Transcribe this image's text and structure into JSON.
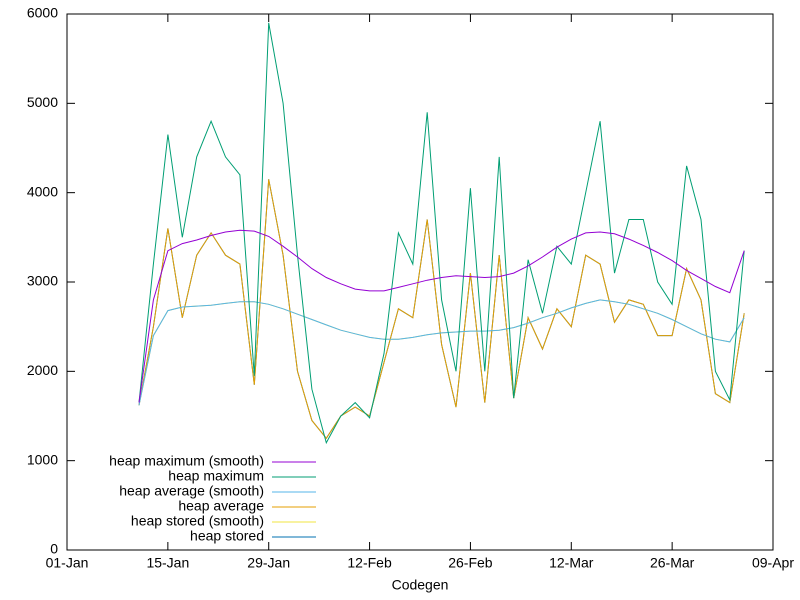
{
  "chart_data": {
    "type": "line",
    "x_label": "Codegen",
    "x": [
      "11-Jan",
      "13-Jan",
      "15-Jan",
      "17-Jan",
      "19-Jan",
      "21-Jan",
      "23-Jan",
      "25-Jan",
      "27-Jan",
      "29-Jan",
      "31-Jan",
      "02-Feb",
      "04-Feb",
      "06-Feb",
      "08-Feb",
      "10-Feb",
      "12-Feb",
      "14-Feb",
      "16-Feb",
      "18-Feb",
      "20-Feb",
      "22-Feb",
      "24-Feb",
      "26-Feb",
      "28-Feb",
      "02-Mar",
      "04-Mar",
      "06-Mar",
      "08-Mar",
      "10-Mar",
      "12-Mar",
      "14-Mar",
      "16-Mar",
      "18-Mar",
      "20-Mar",
      "22-Mar",
      "24-Mar",
      "26-Mar",
      "28-Mar",
      "30-Mar",
      "01-Apr",
      "03-Apr",
      "05-Apr"
    ],
    "series": [
      {
        "name": "heap maximum (smooth)",
        "color": "#9400d3",
        "values": [
          1650,
          2800,
          3350,
          3430,
          3470,
          3520,
          3560,
          3580,
          3570,
          3510,
          3400,
          3280,
          3150,
          3050,
          2980,
          2920,
          2900,
          2900,
          2940,
          2980,
          3020,
          3050,
          3070,
          3060,
          3050,
          3060,
          3100,
          3180,
          3280,
          3390,
          3480,
          3550,
          3560,
          3540,
          3480,
          3410,
          3330,
          3240,
          3130,
          3040,
          2950,
          2880,
          3350
        ]
      },
      {
        "name": "heap maximum",
        "color": "#009e73",
        "values": [
          1650,
          3200,
          4650,
          3500,
          4400,
          4800,
          4400,
          4200,
          1950,
          5900,
          5000,
          3300,
          1800,
          1200,
          1500,
          1650,
          1480,
          2200,
          3550,
          3200,
          4900,
          2800,
          2000,
          4050,
          2000,
          4400,
          1700,
          3250,
          2650,
          3400,
          3200,
          4000,
          4800,
          3100,
          3700,
          3700,
          3000,
          2750,
          4300,
          3700,
          2000,
          1680,
          3350
        ]
      },
      {
        "name": "heap average (smooth)",
        "color": "#56b4e9",
        "values": [
          1620,
          2400,
          2680,
          2720,
          2730,
          2740,
          2760,
          2780,
          2780,
          2750,
          2700,
          2640,
          2580,
          2520,
          2460,
          2420,
          2380,
          2360,
          2360,
          2380,
          2410,
          2430,
          2440,
          2450,
          2450,
          2460,
          2490,
          2540,
          2600,
          2650,
          2710,
          2760,
          2800,
          2780,
          2750,
          2700,
          2650,
          2580,
          2500,
          2420,
          2360,
          2330,
          2600
        ]
      },
      {
        "name": "heap average",
        "color": "#e69f00",
        "values": [
          1620,
          2500,
          3600,
          2600,
          3300,
          3550,
          3300,
          3200,
          1850,
          4150,
          3300,
          2000,
          1450,
          1250,
          1500,
          1600,
          1500,
          2100,
          2700,
          2600,
          3700,
          2300,
          1600,
          3100,
          1650,
          3300,
          1700,
          2600,
          2250,
          2700,
          2500,
          3300,
          3200,
          2550,
          2800,
          2750,
          2400,
          2400,
          3150,
          2800,
          1750,
          1650,
          2650
        ]
      },
      {
        "name": "heap stored (smooth)",
        "color": "#f0e442",
        "values": [
          1620,
          2400,
          2680,
          2720,
          2730,
          2740,
          2760,
          2780,
          2780,
          2750,
          2700,
          2640,
          2580,
          2520,
          2460,
          2420,
          2380,
          2360,
          2360,
          2380,
          2410,
          2430,
          2440,
          2450,
          2450,
          2460,
          2490,
          2540,
          2600,
          2650,
          2710,
          2760,
          2800,
          2780,
          2750,
          2700,
          2650,
          2580,
          2500,
          2420,
          2360,
          2330,
          2600
        ]
      },
      {
        "name": "heap stored",
        "color": "#0072b2",
        "values": [
          1620,
          2500,
          3600,
          2600,
          3300,
          3550,
          3300,
          3200,
          1850,
          4150,
          3300,
          2000,
          1450,
          1250,
          1500,
          1600,
          1500,
          2100,
          2700,
          2600,
          3700,
          2300,
          1600,
          3100,
          1650,
          3300,
          1700,
          2600,
          2250,
          2700,
          2500,
          3300,
          3200,
          2550,
          2800,
          2750,
          2400,
          2400,
          3150,
          2800,
          1750,
          1650,
          2650
        ]
      }
    ],
    "xlim": [
      "01-Jan",
      "09-Apr"
    ],
    "xticks": [
      "01-Jan",
      "15-Jan",
      "29-Jan",
      "12-Feb",
      "26-Feb",
      "12-Mar",
      "26-Mar",
      "09-Apr"
    ],
    "ylim": [
      0,
      6000
    ],
    "yticks": [
      0,
      1000,
      2000,
      3000,
      4000,
      5000,
      6000
    ],
    "legend": "bottom-left",
    "grid": false
  }
}
